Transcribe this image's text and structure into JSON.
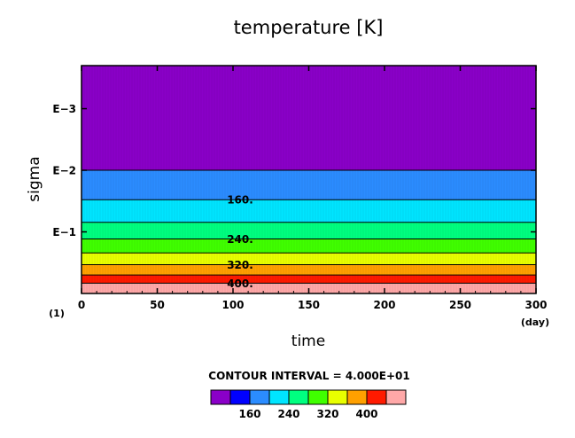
{
  "chart_data": {
    "type": "heatmap",
    "title": "temperature [K]",
    "xlabel": "time",
    "ylabel": "sigma",
    "x_unit": "(day)",
    "y_unit": "(1)",
    "xlim": [
      0,
      300
    ],
    "x_ticks": [
      0,
      50,
      100,
      150,
      200,
      250,
      300
    ],
    "y_ticks": [
      {
        "label": "E−3",
        "value": 0.001
      },
      {
        "label": "E−2",
        "value": 0.01
      },
      {
        "label": "E−1",
        "value": 0.1
      }
    ],
    "y_scale": "log",
    "ylim": [
      1.0,
      0.0002
    ],
    "contour_interval_text": "CONTOUR INTERVAL = 4.000E+01",
    "contour_levels": [
      40,
      80,
      120,
      160,
      200,
      240,
      280,
      320,
      360,
      400,
      440
    ],
    "band_colors": [
      "#8a00c8",
      "#0000ff",
      "#2b8cff",
      "#00e5ff",
      "#00ff80",
      "#40ff00",
      "#e8ff00",
      "#ffa000",
      "#ff1a00",
      "#ffa8a8"
    ],
    "band_ranges_sigma": [
      {
        "min_T": "<160",
        "sigma_top": 0.0002,
        "sigma_bottom": 0.01
      },
      {
        "min_T": 160,
        "sigma_top": 0.01,
        "sigma_bottom": 0.03
      },
      {
        "min_T": 200,
        "sigma_top": 0.03,
        "sigma_bottom": 0.07
      },
      {
        "min_T": 240,
        "sigma_top": 0.07,
        "sigma_bottom": 0.13
      },
      {
        "min_T": 280,
        "sigma_top": 0.13,
        "sigma_bottom": 0.22
      },
      {
        "min_T": 320,
        "sigma_top": 0.22,
        "sigma_bottom": 0.34
      },
      {
        "min_T": 360,
        "sigma_top": 0.34,
        "sigma_bottom": 0.5
      },
      {
        "min_T": 400,
        "sigma_top": 0.5,
        "sigma_bottom": 0.68
      },
      {
        "min_T": 440,
        "sigma_top": 0.68,
        "sigma_bottom": 1.0
      }
    ],
    "contour_labels": [
      {
        "text": "160.",
        "sigma": 0.03
      },
      {
        "text": "240.",
        "sigma": 0.13
      },
      {
        "text": "320.",
        "sigma": 0.34
      },
      {
        "text": "400.",
        "sigma": 0.68
      }
    ],
    "colorbar_labels": [
      "160",
      "240",
      "320",
      "400"
    ]
  }
}
